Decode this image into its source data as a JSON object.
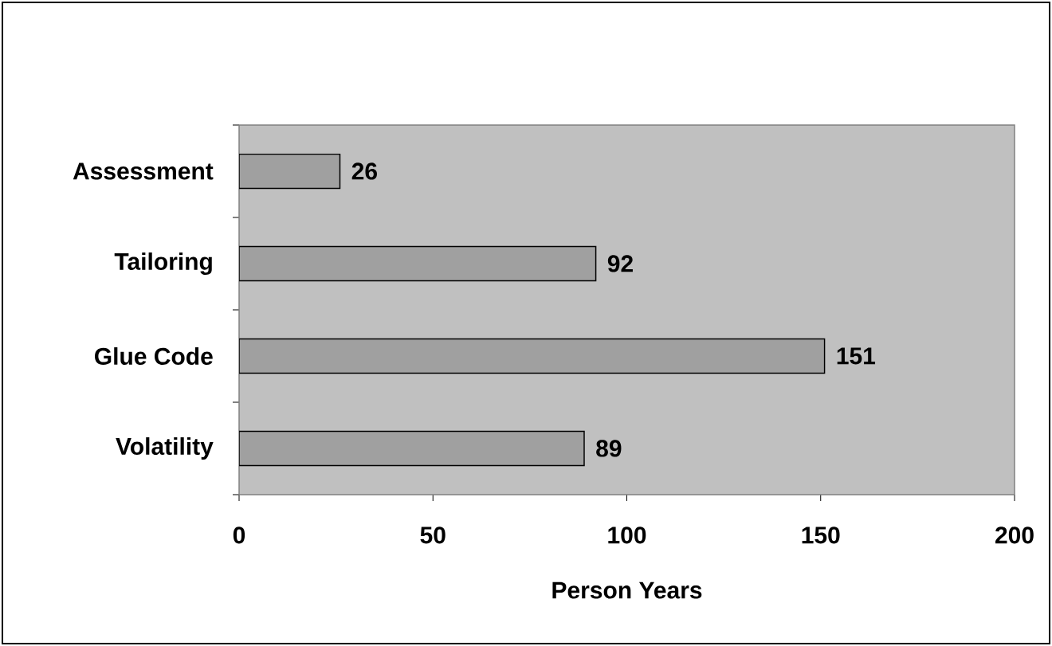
{
  "chart_data": {
    "type": "bar",
    "orientation": "horizontal",
    "categories": [
      "Assessment",
      "Tailoring",
      "Glue Code",
      "Volatility"
    ],
    "values": [
      26,
      92,
      151,
      89
    ],
    "color": "#a0a0a0",
    "xlabel": "Person Years",
    "xlim": [
      0,
      200
    ],
    "xticks": [
      0,
      50,
      100,
      150,
      200
    ],
    "data_labels": true
  }
}
